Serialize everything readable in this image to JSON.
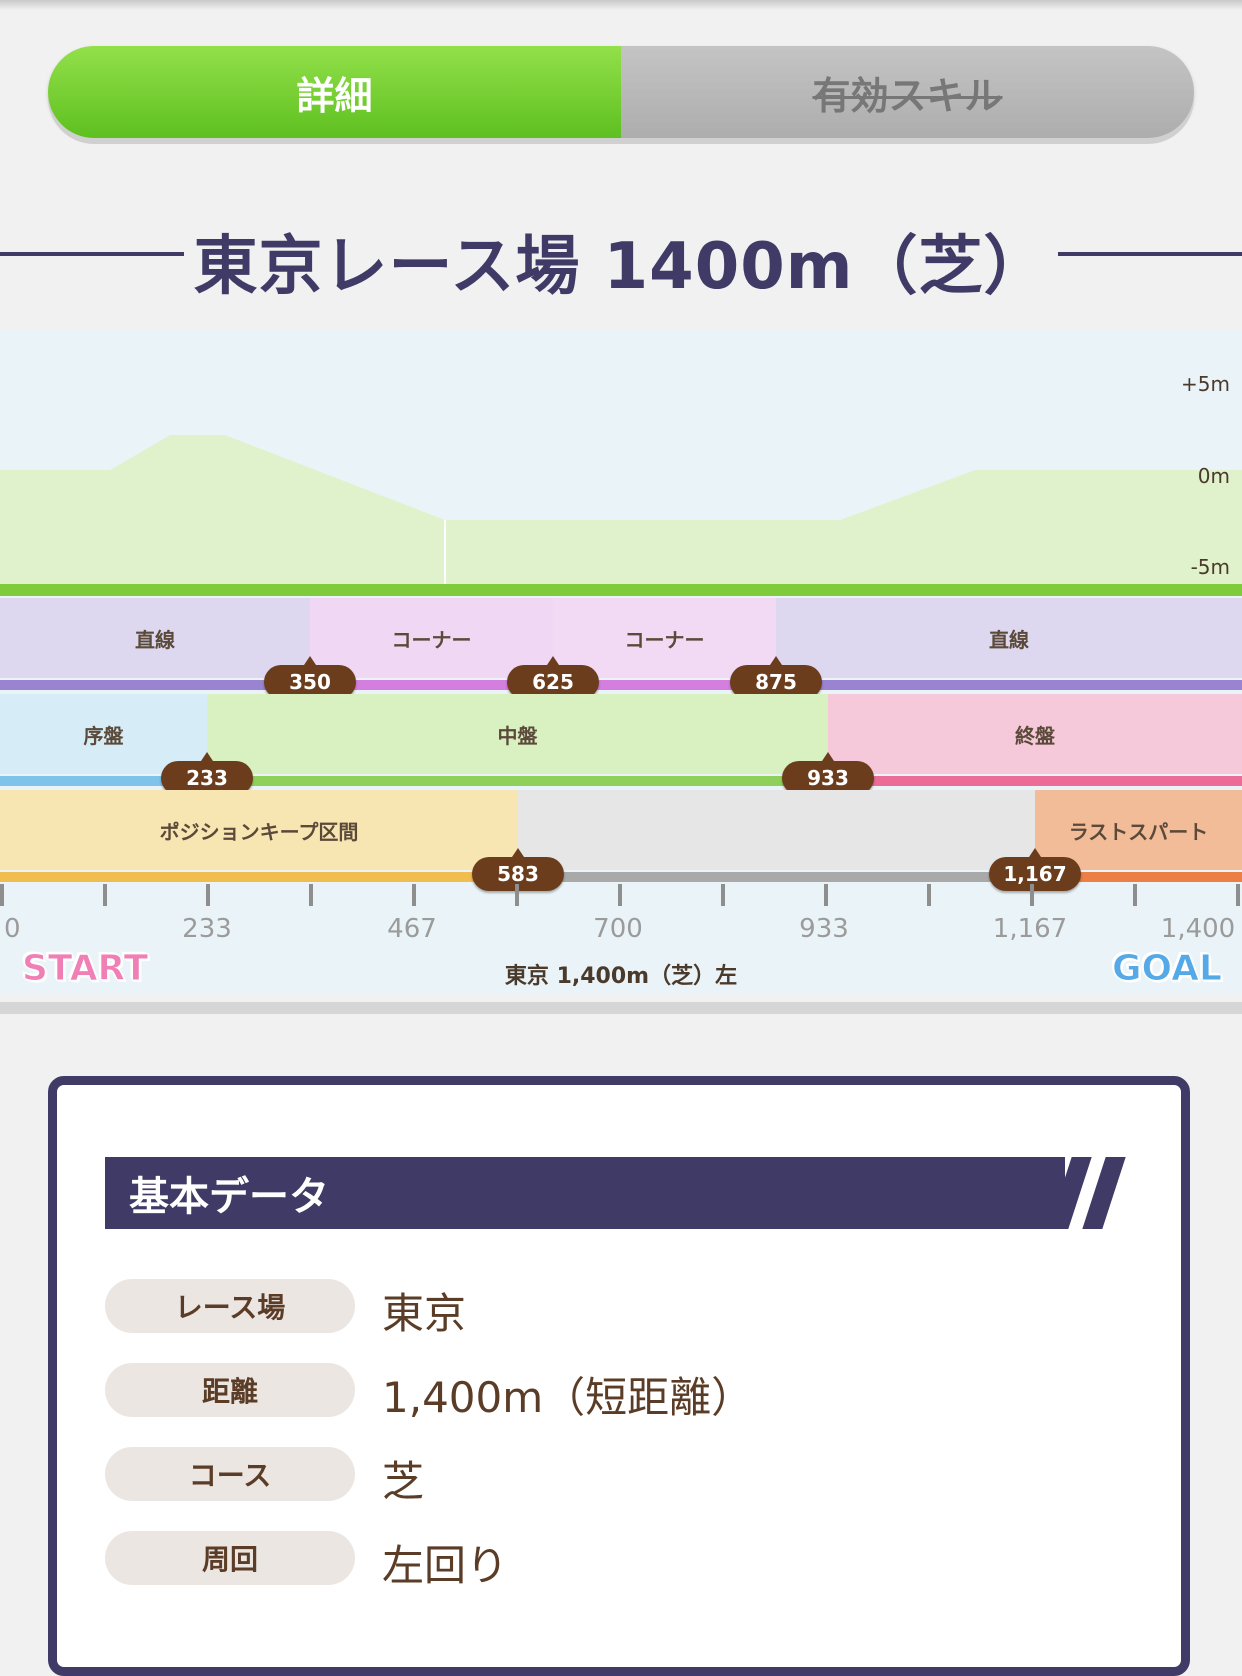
{
  "tabs": {
    "active_label": "詳細",
    "inactive_label": "有効スキル"
  },
  "title": "東京レース場 1400m（芝）",
  "elevation_labels": [
    "+5m",
    "0m",
    "-5m"
  ],
  "sections": [
    {
      "label": "直線",
      "start": 0,
      "end": 350
    },
    {
      "label": "コーナー",
      "start": 350,
      "end": 625
    },
    {
      "label": "コーナー",
      "start": 625,
      "end": 875
    },
    {
      "label": "直線",
      "start": 875,
      "end": 1400
    }
  ],
  "section_markers": [
    "350",
    "625",
    "875"
  ],
  "phases": [
    {
      "label": "序盤",
      "start": 0,
      "end": 233
    },
    {
      "label": "中盤",
      "start": 233,
      "end": 933
    },
    {
      "label": "終盤",
      "start": 933,
      "end": 1400
    }
  ],
  "phase_markers": [
    "233",
    "933"
  ],
  "zones": [
    {
      "label": "ポジションキープ区間",
      "start": 0,
      "end": 583
    },
    {
      "label": "",
      "start": 583,
      "end": 1167
    },
    {
      "label": "ラストスパート",
      "start": 1167,
      "end": 1400
    }
  ],
  "zone_markers": [
    "583",
    "1,167"
  ],
  "axis_ticks": [
    "0",
    "233",
    "467",
    "700",
    "933",
    "1,167",
    "1,400"
  ],
  "start_label": "START",
  "goal_label": "GOAL",
  "course_caption": "東京 1,400m（芝）左",
  "basic_data": {
    "header": "基本データ",
    "rows": [
      {
        "label": "レース場",
        "value": "東京"
      },
      {
        "label": "距離",
        "value": "1,400m（短距離）"
      },
      {
        "label": "コース",
        "value": "芝"
      },
      {
        "label": "周回",
        "value": "左回り"
      }
    ]
  },
  "colors": {
    "accent_navy": "#3f3a66",
    "tab_active": "#6fcc2e",
    "section_straight": "#ddd8ef",
    "section_corner": "#f0d8f4",
    "phase_early": "#d6ecf7",
    "phase_middle": "#d9f0c0",
    "phase_late": "#f6c9da",
    "zone_keep": "#f7e6b2",
    "zone_gap": "#e6e6e6",
    "zone_spurt": "#f2bc99",
    "marker_brown": "#6b3d1c"
  }
}
